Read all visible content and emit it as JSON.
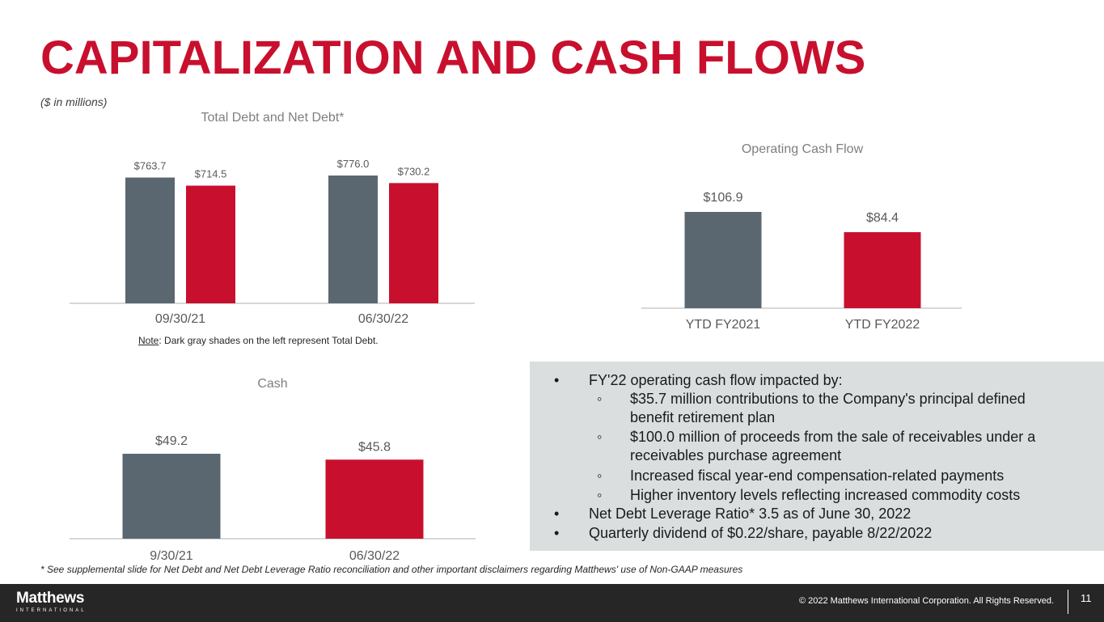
{
  "title": "CAPITALIZATION AND CASH FLOWS",
  "units_note": "($ in millions)",
  "colors": {
    "accent": "#c8102e",
    "gray_bar": "#5b6770",
    "axis": "#bfbfbf",
    "box": "#dadedf"
  },
  "chart_data": [
    {
      "id": "debt",
      "type": "bar",
      "title": "Total Debt and Net Debt*",
      "categories": [
        "09/30/21",
        "06/30/22"
      ],
      "series": [
        {
          "color": "#5b6770",
          "values": [
            763.7,
            776.0
          ],
          "labels": [
            "$763.7",
            "$776.0"
          ]
        },
        {
          "color": "#c8102e",
          "values": [
            714.5,
            730.2
          ],
          "labels": [
            "$714.5",
            "$730.2"
          ]
        }
      ],
      "ylim": [
        0,
        776.0
      ]
    },
    {
      "id": "ocf",
      "type": "bar",
      "title": "Operating Cash Flow",
      "categories": [
        "YTD FY2021",
        "YTD FY2022"
      ],
      "values": [
        106.9,
        84.4
      ],
      "labels": [
        "$106.9",
        "$84.4"
      ],
      "colors": [
        "#5b6770",
        "#c8102e"
      ],
      "ylim": [
        0,
        106.9
      ]
    },
    {
      "id": "cash",
      "type": "bar",
      "title": "Cash",
      "categories": [
        "9/30/21",
        "06/30/22"
      ],
      "values": [
        49.2,
        45.8
      ],
      "labels": [
        "$49.2",
        "$45.8"
      ],
      "colors": [
        "#5b6770",
        "#c8102e"
      ],
      "ylim": [
        0,
        49.2
      ]
    }
  ],
  "debt_note": {
    "prefix": "Note",
    "text": ": Dark gray shades on the left represent Total Debt."
  },
  "bullets": {
    "b1": "FY'22 operating cash flow impacted by:",
    "s1": "$35.7 million contributions to the Company's principal defined benefit retirement plan",
    "s2": "$100.0 million of proceeds from the sale of receivables under a receivables purchase agreement",
    "s3": "Increased fiscal year-end compensation-related payments",
    "s4": "Higher inventory levels reflecting increased commodity costs",
    "b2": "Net Debt Leverage Ratio* 3.5 as of June 30, 2022",
    "b3": "Quarterly dividend of $0.22/share, payable 8/22/2022"
  },
  "footnote": "* See supplemental slide for Net Debt and Net Debt Leverage Ratio reconciliation and other important disclaimers regarding Matthews' use of Non-GAAP measures",
  "footer": {
    "logo_main": "Matthews",
    "logo_sub": "INTERNATIONAL",
    "copyright": "© 2022 Matthews International Corporation. All Rights Reserved.",
    "page_number": "11"
  }
}
